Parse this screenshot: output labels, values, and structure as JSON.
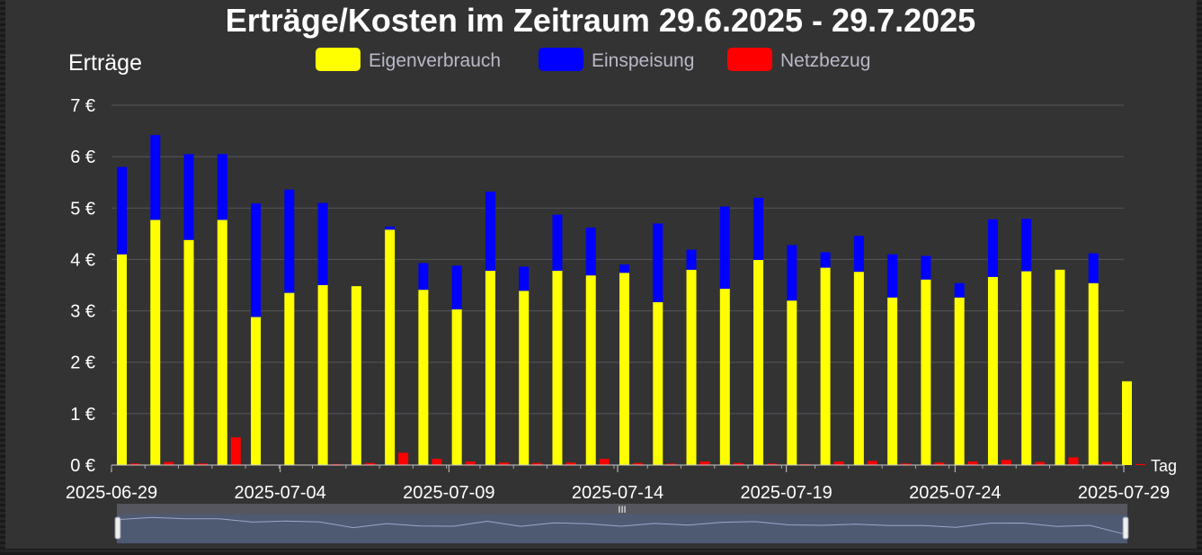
{
  "chart_data": {
    "type": "bar",
    "title": "Erträge/Kosten im Zeitraum 29.6.2025 - 29.7.2025",
    "ylabel": "Erträge",
    "xlabel": "Tag",
    "ylim": [
      0,
      7
    ],
    "y_ticks": [
      "0 €",
      "1 €",
      "2 €",
      "3 €",
      "4 €",
      "5 €",
      "6 €",
      "7 €"
    ],
    "x_tick_labels": [
      "2025-06-29",
      "2025-07-04",
      "2025-07-09",
      "2025-07-14",
      "2025-07-19",
      "2025-07-24",
      "2025-07-29"
    ],
    "grid": true,
    "legend_position": "top-center",
    "categories": [
      "2025-06-29",
      "2025-06-30",
      "2025-07-01",
      "2025-07-02",
      "2025-07-03",
      "2025-07-04",
      "2025-07-05",
      "2025-07-06",
      "2025-07-07",
      "2025-07-08",
      "2025-07-09",
      "2025-07-10",
      "2025-07-11",
      "2025-07-12",
      "2025-07-13",
      "2025-07-14",
      "2025-07-15",
      "2025-07-16",
      "2025-07-17",
      "2025-07-18",
      "2025-07-19",
      "2025-07-20",
      "2025-07-21",
      "2025-07-22",
      "2025-07-23",
      "2025-07-24",
      "2025-07-25",
      "2025-07-26",
      "2025-07-27",
      "2025-07-28",
      "2025-07-29"
    ],
    "series": [
      {
        "name": "Eigenverbrauch",
        "color": "#ffff00",
        "values": [
          4.1,
          4.77,
          4.38,
          4.77,
          2.88,
          3.35,
          3.5,
          3.48,
          4.58,
          3.41,
          3.03,
          3.78,
          3.39,
          3.78,
          3.69,
          3.74,
          3.17,
          3.8,
          3.43,
          3.99,
          3.2,
          3.84,
          3.76,
          3.26,
          3.61,
          3.26,
          3.66,
          3.77,
          3.8,
          3.54,
          1.63
        ]
      },
      {
        "name": "Einspeisung",
        "color": "#0000ff",
        "values": [
          1.7,
          1.65,
          1.67,
          1.28,
          2.21,
          2.01,
          1.6,
          0,
          0.06,
          0.52,
          0.85,
          1.54,
          0.47,
          1.09,
          0.93,
          0.16,
          1.53,
          0.39,
          1.6,
          1.21,
          1.08,
          0.3,
          0.7,
          0.84,
          0.46,
          0.28,
          1.12,
          1.02,
          0,
          0.58,
          0
        ]
      },
      {
        "name": "Netzbezug",
        "color": "#ff0000",
        "values": [
          0.03,
          0.06,
          0.03,
          0.54,
          0.01,
          0.01,
          0.02,
          0.04,
          0.24,
          0.12,
          0.07,
          0.05,
          0.04,
          0.05,
          0.12,
          0.04,
          0.03,
          0.07,
          0.04,
          0.03,
          0.02,
          0.07,
          0.08,
          0.03,
          0.05,
          0.07,
          0.1,
          0.06,
          0.15,
          0.06,
          0.02
        ]
      }
    ]
  },
  "colors": {
    "background": "#333333",
    "grid": "#55555e",
    "text": "#ffffff",
    "legend_text": "#b9b9c9",
    "navigator_fill": "#4e5a72",
    "navigator_line": "#9aa6c8"
  }
}
